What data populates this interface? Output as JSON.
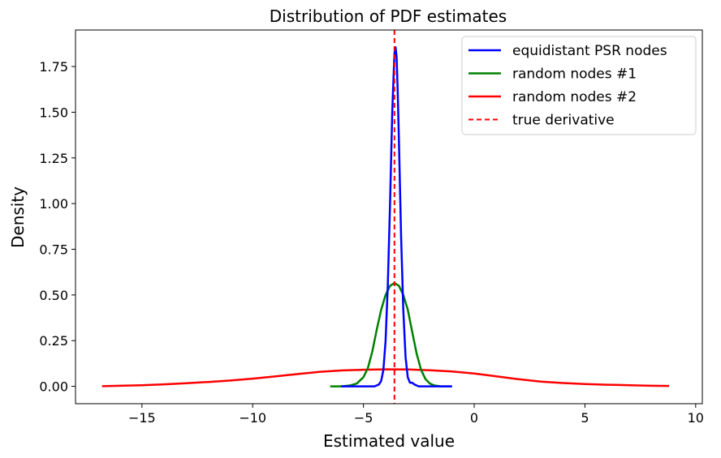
{
  "chart_data": {
    "type": "line",
    "title": "Distribution of PDF estimates",
    "xlabel": "Estimated value",
    "ylabel": "Density",
    "xlim": [
      -18,
      10.3
    ],
    "ylim": [
      -0.095,
      1.95
    ],
    "xticks": [
      -15,
      -10,
      -5,
      0,
      5,
      10
    ],
    "xtick_labels": [
      "−15",
      "−10",
      "−5",
      "0",
      "5",
      "10"
    ],
    "yticks": [
      0.0,
      0.25,
      0.5,
      0.75,
      1.0,
      1.25,
      1.5,
      1.75
    ],
    "ytick_labels": [
      "0.00",
      "0.25",
      "0.50",
      "0.75",
      "1.00",
      "1.25",
      "1.50",
      "1.75"
    ],
    "grid": false,
    "legend_position": "top-right",
    "series": [
      {
        "name": "equidistant PSR nodes",
        "color": "#0000ff",
        "style": "solid",
        "x": [
          -6.0,
          -5.0,
          -4.5,
          -4.3,
          -4.2,
          -4.1,
          -4.0,
          -3.9,
          -3.8,
          -3.7,
          -3.6,
          -3.55,
          -3.5,
          -3.45,
          -3.4,
          -3.3,
          -3.2,
          -3.1,
          -3.0,
          -2.9,
          -2.8,
          -2.7,
          -2.6,
          -2.5,
          -2.0,
          -1.0
        ],
        "y": [
          0.0,
          0.0,
          0.0,
          0.01,
          0.03,
          0.09,
          0.25,
          0.55,
          1.0,
          1.5,
          1.82,
          1.855,
          1.8,
          1.6,
          1.35,
          0.82,
          0.42,
          0.16,
          0.05,
          0.02,
          0.02,
          0.01,
          0.005,
          0.0,
          0.0,
          0.0
        ]
      },
      {
        "name": "random nodes #1",
        "color": "#008000",
        "style": "solid",
        "x": [
          -6.5,
          -6.0,
          -5.6,
          -5.3,
          -5.0,
          -4.8,
          -4.6,
          -4.4,
          -4.2,
          -4.0,
          -3.8,
          -3.6,
          -3.4,
          -3.2,
          -3.0,
          -2.8,
          -2.6,
          -2.4,
          -2.2,
          -2.0,
          -1.8,
          -1.5,
          -1.0
        ],
        "y": [
          0.0,
          0.0,
          0.005,
          0.015,
          0.05,
          0.1,
          0.19,
          0.31,
          0.42,
          0.5,
          0.55,
          0.565,
          0.55,
          0.5,
          0.42,
          0.3,
          0.18,
          0.09,
          0.04,
          0.015,
          0.005,
          0.0,
          0.0
        ]
      },
      {
        "name": "random nodes #2",
        "color": "#ff0000",
        "style": "solid",
        "x": [
          -16.8,
          -16.0,
          -15.0,
          -14.0,
          -13.0,
          -12.0,
          -11.0,
          -10.0,
          -9.0,
          -8.0,
          -7.0,
          -6.0,
          -5.0,
          -4.0,
          -3.0,
          -2.0,
          -1.0,
          0.0,
          1.0,
          2.0,
          3.0,
          4.0,
          5.0,
          6.0,
          7.0,
          8.0,
          8.8
        ],
        "y": [
          0.001,
          0.003,
          0.006,
          0.011,
          0.017,
          0.024,
          0.032,
          0.042,
          0.054,
          0.067,
          0.079,
          0.087,
          0.091,
          0.093,
          0.092,
          0.088,
          0.081,
          0.07,
          0.055,
          0.039,
          0.026,
          0.018,
          0.013,
          0.009,
          0.006,
          0.003,
          0.002
        ]
      }
    ],
    "reference_line": {
      "name": "true derivative",
      "color": "#ff0000",
      "style": "dashed",
      "x": -3.6
    }
  }
}
